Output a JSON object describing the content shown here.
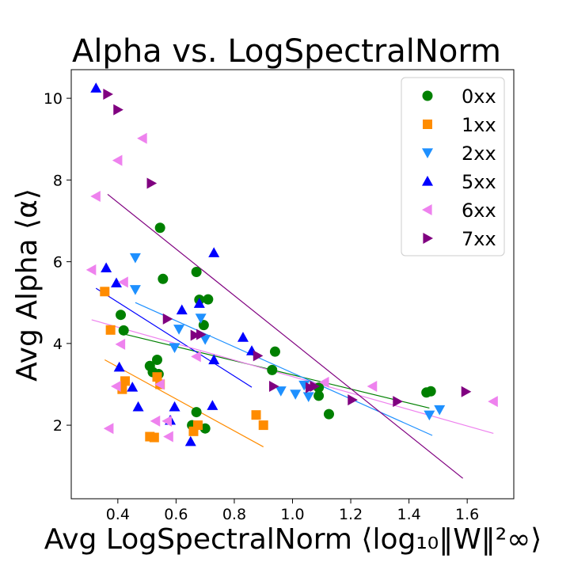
{
  "chart_data": {
    "type": "scatter",
    "title": "Alpha vs. LogSpectralNorm",
    "xlabel": "Avg LogSpectralNorm ⟨log₁₀‖W‖²∞⟩",
    "ylabel": "Avg Alpha ⟨α⟩",
    "xlim": [
      0.24,
      1.76
    ],
    "ylim": [
      0.2,
      10.7
    ],
    "xticks": [
      "0.4",
      "0.6",
      "0.8",
      "1.0",
      "1.2",
      "1.4",
      "1.6"
    ],
    "yticks": [
      "2",
      "4",
      "6",
      "8",
      "10"
    ],
    "grid": false,
    "legend_position": "top-right",
    "series": [
      {
        "name": "0xx",
        "marker": "circle",
        "color": "#008000",
        "points": [
          [
            0.41,
            4.7
          ],
          [
            0.42,
            4.32
          ],
          [
            0.51,
            3.45
          ],
          [
            0.52,
            3.3
          ],
          [
            0.535,
            3.6
          ],
          [
            0.54,
            3.25
          ],
          [
            0.545,
            6.83
          ],
          [
            0.555,
            5.58
          ],
          [
            0.655,
            2.0
          ],
          [
            0.67,
            5.75
          ],
          [
            0.67,
            2.32
          ],
          [
            0.68,
            5.07
          ],
          [
            0.695,
            4.45
          ],
          [
            0.7,
            1.92
          ],
          [
            0.71,
            5.08
          ],
          [
            0.93,
            3.35
          ],
          [
            0.94,
            3.8
          ],
          [
            1.09,
            2.92
          ],
          [
            1.09,
            2.72
          ],
          [
            1.125,
            2.27
          ],
          [
            1.46,
            2.8
          ],
          [
            1.475,
            2.83
          ]
        ],
        "fit": [
          [
            0.41,
            4.25
          ],
          [
            1.47,
            2.42
          ]
        ]
      },
      {
        "name": "1xx",
        "marker": "square",
        "color": "#ff8c00",
        "points": [
          [
            0.355,
            5.27
          ],
          [
            0.375,
            4.33
          ],
          [
            0.415,
            2.88
          ],
          [
            0.425,
            3.08
          ],
          [
            0.51,
            1.72
          ],
          [
            0.525,
            1.7
          ],
          [
            0.535,
            3.18
          ],
          [
            0.545,
            3.0
          ],
          [
            0.66,
            1.85
          ],
          [
            0.675,
            2.0
          ],
          [
            0.875,
            2.25
          ],
          [
            0.9,
            2.0
          ]
        ],
        "fit": [
          [
            0.355,
            3.6
          ],
          [
            0.9,
            1.47
          ]
        ]
      },
      {
        "name": "2xx",
        "marker": "triangle-down",
        "color": "#1e90ff",
        "points": [
          [
            0.46,
            6.1
          ],
          [
            0.46,
            5.32
          ],
          [
            0.595,
            3.9
          ],
          [
            0.61,
            4.35
          ],
          [
            0.685,
            4.62
          ],
          [
            0.7,
            4.1
          ],
          [
            0.96,
            2.84
          ],
          [
            1.01,
            2.76
          ],
          [
            1.04,
            2.98
          ],
          [
            1.055,
            2.7
          ],
          [
            1.47,
            2.25
          ],
          [
            1.505,
            2.38
          ]
        ],
        "fit": [
          [
            0.46,
            5.0
          ],
          [
            1.48,
            1.75
          ]
        ]
      },
      {
        "name": "5xx",
        "marker": "triangle-up",
        "color": "#0000ff",
        "points": [
          [
            0.325,
            10.25
          ],
          [
            0.36,
            5.85
          ],
          [
            0.395,
            5.48
          ],
          [
            0.405,
            3.42
          ],
          [
            0.45,
            2.93
          ],
          [
            0.47,
            2.45
          ],
          [
            0.58,
            2.12
          ],
          [
            0.595,
            2.45
          ],
          [
            0.62,
            4.82
          ],
          [
            0.65,
            1.6
          ],
          [
            0.68,
            4.98
          ],
          [
            0.725,
            2.48
          ],
          [
            0.73,
            6.22
          ],
          [
            0.73,
            3.6
          ],
          [
            0.83,
            4.15
          ],
          [
            0.86,
            3.82
          ]
        ],
        "fit": [
          [
            0.325,
            5.35
          ],
          [
            0.86,
            2.93
          ]
        ]
      },
      {
        "name": "6xx",
        "marker": "triangle-left",
        "color": "#ee82ee",
        "points": [
          [
            0.31,
            5.8
          ],
          [
            0.325,
            7.6
          ],
          [
            0.37,
            1.92
          ],
          [
            0.395,
            2.95
          ],
          [
            0.4,
            8.48
          ],
          [
            0.41,
            3.98
          ],
          [
            0.42,
            5.5
          ],
          [
            0.485,
            9.02
          ],
          [
            0.53,
            2.1
          ],
          [
            0.545,
            3.0
          ],
          [
            0.57,
            2.1
          ],
          [
            0.575,
            1.72
          ],
          [
            0.67,
            3.68
          ],
          [
            1.11,
            3.05
          ],
          [
            1.275,
            2.95
          ],
          [
            1.69,
            2.58
          ]
        ],
        "fit": [
          [
            0.31,
            4.58
          ],
          [
            1.69,
            1.8
          ]
        ]
      },
      {
        "name": "7xx",
        "marker": "triangle-right",
        "color": "#800080",
        "points": [
          [
            0.365,
            10.1
          ],
          [
            0.4,
            9.72
          ],
          [
            0.515,
            7.92
          ],
          [
            0.57,
            4.6
          ],
          [
            0.665,
            4.2
          ],
          [
            0.685,
            4.22
          ],
          [
            0.88,
            3.7
          ],
          [
            0.935,
            2.95
          ],
          [
            1.06,
            2.92
          ],
          [
            1.075,
            2.95
          ],
          [
            1.205,
            2.62
          ],
          [
            1.36,
            2.58
          ],
          [
            1.595,
            2.82
          ]
        ],
        "fit": [
          [
            0.365,
            7.65
          ],
          [
            1.585,
            0.7
          ]
        ]
      }
    ]
  }
}
